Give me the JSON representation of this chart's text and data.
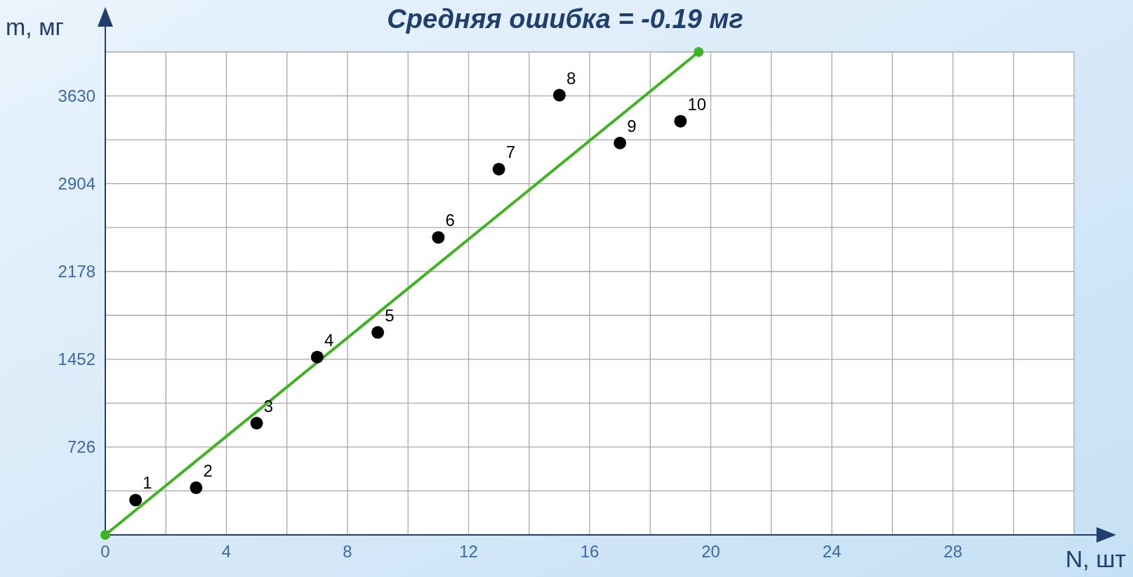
{
  "chart_data": {
    "type": "scatter",
    "title": "Средняя ошибка = -0.19 мг",
    "xlabel": "N, шт",
    "ylabel": "m, мг",
    "xlim": [
      0,
      32
    ],
    "ylim": [
      0,
      3993
    ],
    "xticks": [
      {
        "value": 0,
        "label": "0"
      },
      {
        "value": 2,
        "label": null
      },
      4,
      {
        "value": 6,
        "label": null
      },
      8,
      {
        "value": 10,
        "label": null
      },
      12,
      {
        "value": 14,
        "label": null
      },
      16,
      {
        "value": 18,
        "label": null
      },
      20,
      {
        "value": 22,
        "label": null
      },
      24,
      {
        "value": 26,
        "label": null
      },
      28,
      {
        "value": 30,
        "label": null
      },
      {
        "value": 32,
        "label": null
      }
    ],
    "yticks": [
      {
        "value": 0,
        "label": null
      },
      {
        "value": 363,
        "label": null
      },
      726,
      {
        "value": 1089,
        "label": null
      },
      1452,
      {
        "value": 1815,
        "label": null
      },
      2178,
      {
        "value": 2541,
        "label": null
      },
      2904,
      {
        "value": 3267,
        "label": null
      },
      3630,
      {
        "value": 3993,
        "label": null
      }
    ],
    "grid": true,
    "series": [
      {
        "color": "#000000",
        "marker": "circle",
        "x": [
          1,
          3,
          5,
          7,
          9,
          11,
          13,
          15,
          17,
          19
        ],
        "values": [
          288,
          390,
          924,
          1470,
          1674,
          2460,
          3024,
          3636,
          3240,
          3420
        ]
      },
      {
        "type": "line",
        "color": "#3cb521",
        "marker": "circle",
        "line_style": "solid",
        "x": [
          0,
          19.6
        ],
        "values": [
          0,
          3993
        ]
      }
    ],
    "annotations": [
      {
        "text": "1",
        "x": 1,
        "y": 288
      },
      {
        "text": "2",
        "x": 3,
        "y": 390
      },
      {
        "text": "3",
        "x": 5,
        "y": 924
      },
      {
        "text": "4",
        "x": 7,
        "y": 1470
      },
      {
        "text": "5",
        "x": 9,
        "y": 1674
      },
      {
        "text": "6",
        "x": 11,
        "y": 2460
      },
      {
        "text": "7",
        "x": 13,
        "y": 3024
      },
      {
        "text": "8",
        "x": 15,
        "y": 3636
      },
      {
        "text": "9",
        "x": 17,
        "y": 3240
      },
      {
        "text": "10",
        "x": 19,
        "y": 3420
      }
    ]
  }
}
